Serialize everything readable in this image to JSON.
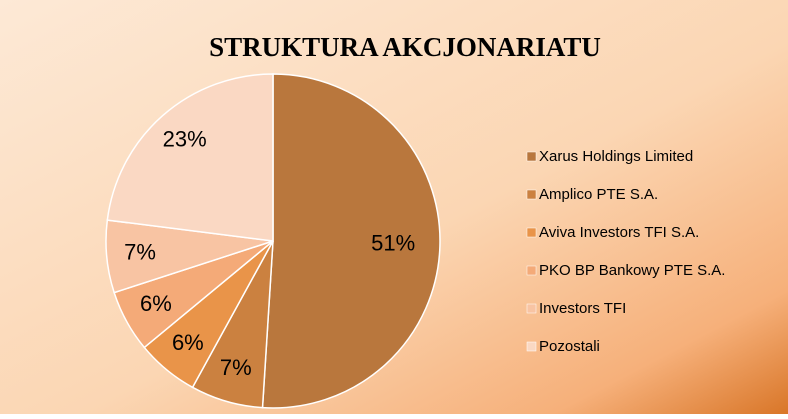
{
  "chart_data": {
    "type": "pie",
    "title": "STRUKTURA AKCJONARIATU",
    "categories": [
      "Xarus Holdings Limited",
      "Amplico PTE S.A.",
      "Aviva Investors TFI S.A.",
      "PKO BP Bankowy PTE S.A.",
      "Investors TFI",
      "Pozostali"
    ],
    "values": [
      51,
      7,
      6,
      6,
      7,
      23
    ],
    "value_labels": [
      "51%",
      "7%",
      "6%",
      "6%",
      "7%",
      "23%"
    ],
    "colors": [
      "#b9773d",
      "#cb8140",
      "#e99449",
      "#f4aa78",
      "#f8c4a3",
      "#fad8c3"
    ],
    "legend": "right"
  }
}
